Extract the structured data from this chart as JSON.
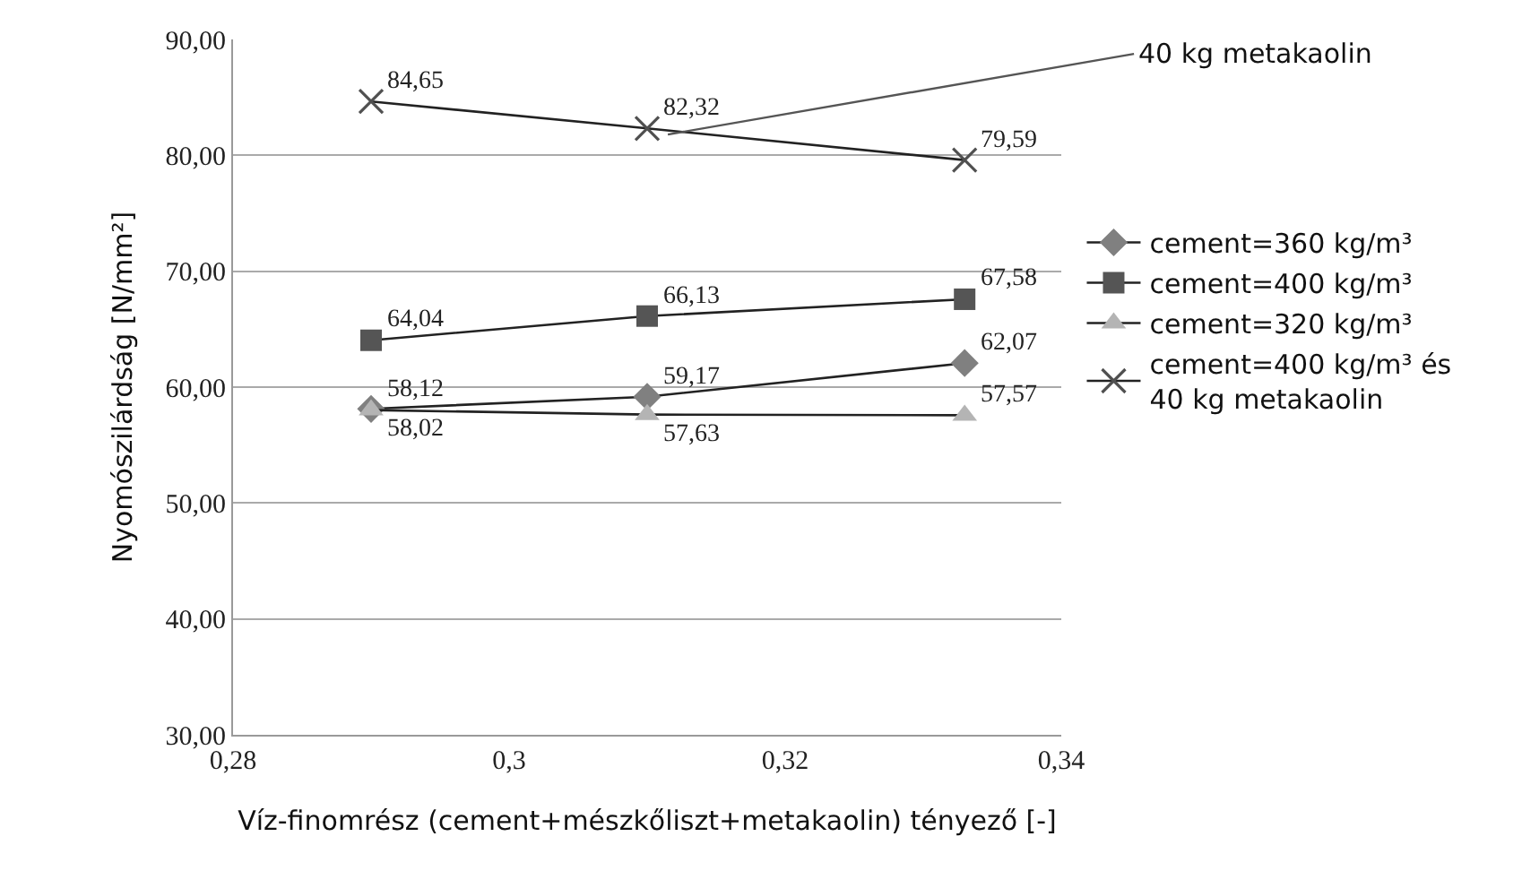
{
  "chart_data": {
    "type": "line",
    "xlabel": "Víz-finomrész (cement+mészkőliszt+metakaolin) tényező [-]",
    "ylabel": "Nyomószilárdság [N/mm²]",
    "x": [
      0.29,
      0.31,
      0.333
    ],
    "series": [
      {
        "name": "cement=360 kg/m³",
        "color": "#808080",
        "marker": "diamond",
        "values": [
          58.12,
          59.17,
          62.07
        ],
        "value_labels": [
          "58,12",
          "59,17",
          "62,07"
        ]
      },
      {
        "name": "cement=400 kg/m³",
        "color": "#555555",
        "marker": "square",
        "values": [
          64.04,
          66.13,
          67.58
        ],
        "value_labels": [
          "64,04",
          "66,13",
          "67,58"
        ]
      },
      {
        "name": "cement=320 kg/m³",
        "color": "#b4b4b4",
        "marker": "triangle",
        "values": [
          58.02,
          57.63,
          57.57
        ],
        "value_labels": [
          "58,02",
          "57,63",
          "57,57"
        ]
      },
      {
        "name": "cement=400 kg/m³ és 40 kg metakaolin",
        "color": "#505050",
        "marker": "cross",
        "values": [
          84.65,
          82.32,
          79.59
        ],
        "value_labels": [
          "84,65",
          "82,32",
          "79,59"
        ]
      }
    ],
    "xlim": [
      0.28,
      0.34
    ],
    "xticks": [
      {
        "value": 0.28,
        "label": "0,28"
      },
      {
        "value": 0.3,
        "label": "0,3"
      },
      {
        "value": 0.32,
        "label": "0,32"
      },
      {
        "value": 0.34,
        "label": "0,34"
      }
    ],
    "ylim": [
      30,
      90
    ],
    "yticks": [
      {
        "value": 30,
        "label": "30,00"
      },
      {
        "value": 40,
        "label": "40,00"
      },
      {
        "value": 50,
        "label": "50,00"
      },
      {
        "value": 60,
        "label": "60,00"
      },
      {
        "value": 70,
        "label": "70,00"
      },
      {
        "value": 80,
        "label": "80,00"
      },
      {
        "value": 90,
        "label": "90,00"
      }
    ],
    "grid": "y",
    "legend": "right",
    "annotations": [
      {
        "text": "40 kg metakaolin",
        "x": 0.3115,
        "y": 81.8
      }
    ]
  }
}
